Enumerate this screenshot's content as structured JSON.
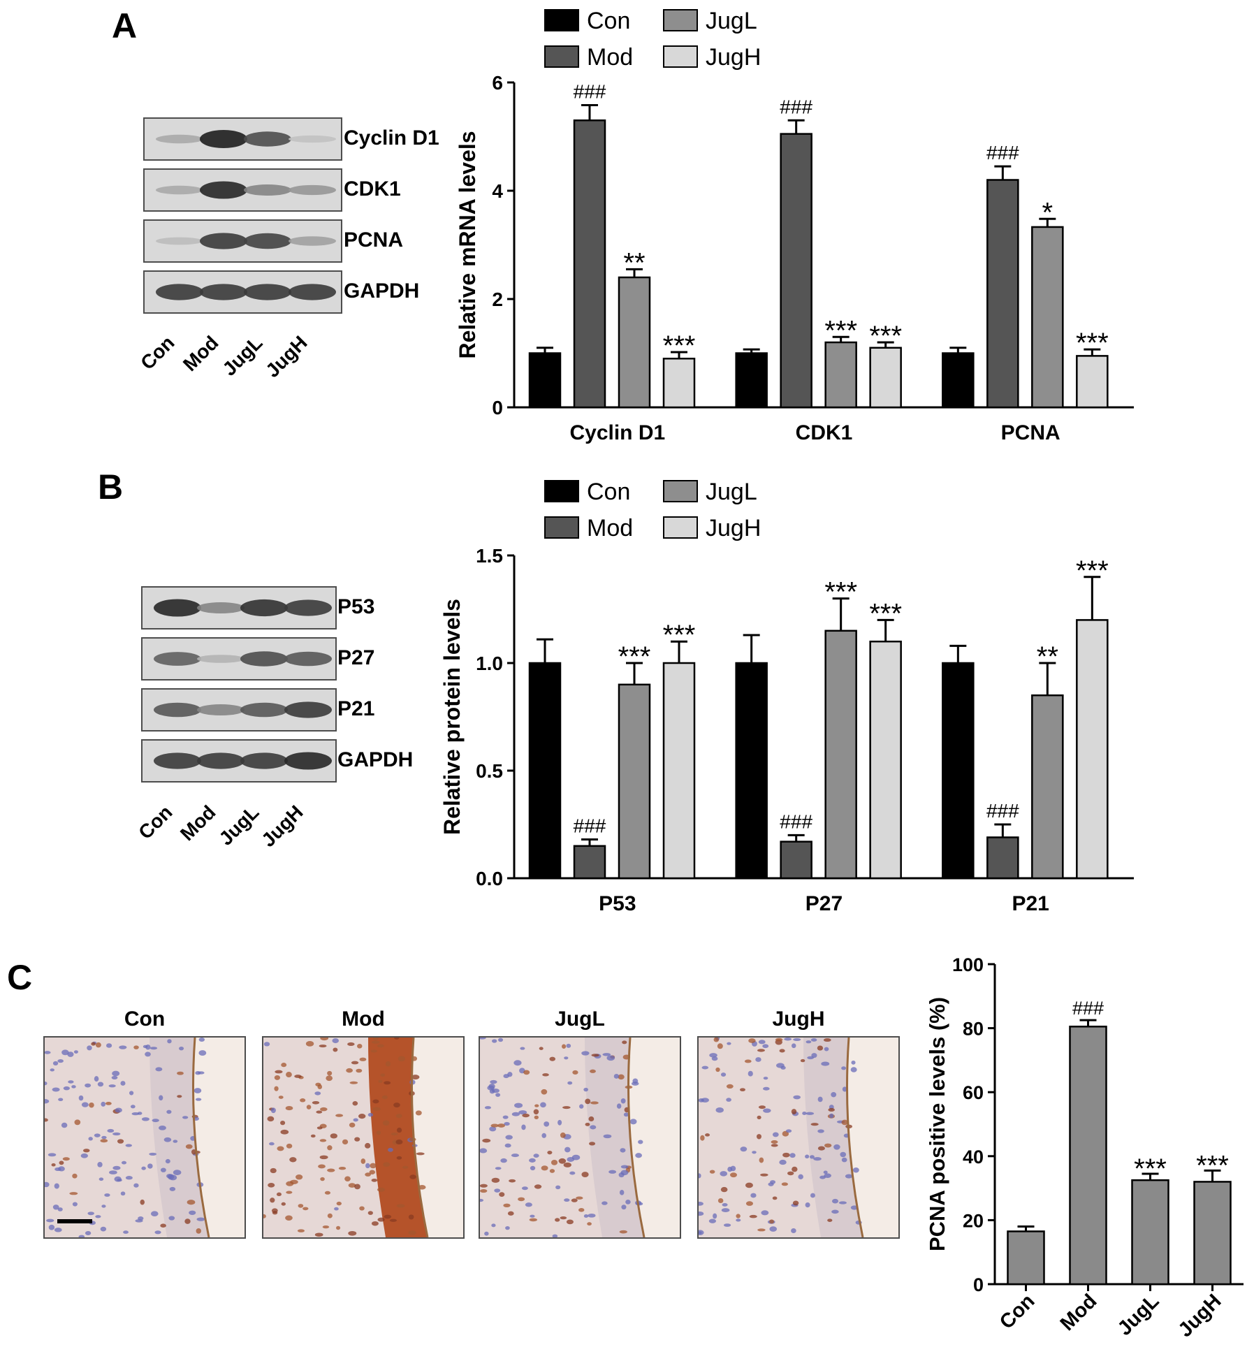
{
  "panels": {
    "A": "A",
    "B": "B",
    "C": "C"
  },
  "colors": {
    "Con": "#000000",
    "Mod": "#555555",
    "JugL": "#8e8e8e",
    "JugH": "#d8d8d8"
  },
  "blot_A": {
    "proteins": [
      "Cyclin D1",
      "CDK1",
      "PCNA",
      "GAPDH"
    ],
    "lanes": [
      "Con",
      "Mod",
      "JugL",
      "JugH"
    ],
    "intensity": [
      [
        0.25,
        1.0,
        0.75,
        0.12
      ],
      [
        0.25,
        0.95,
        0.45,
        0.35
      ],
      [
        0.15,
        0.85,
        0.8,
        0.3
      ],
      [
        0.85,
        0.85,
        0.85,
        0.85
      ]
    ]
  },
  "blot_B": {
    "proteins": [
      "P53",
      "P27",
      "P21",
      "GAPDH"
    ],
    "lanes": [
      "Con",
      "Mod",
      "JugL",
      "JugH"
    ],
    "intensity": [
      [
        0.95,
        0.45,
        0.9,
        0.85
      ],
      [
        0.65,
        0.2,
        0.75,
        0.7
      ],
      [
        0.7,
        0.45,
        0.7,
        0.85
      ],
      [
        0.85,
        0.85,
        0.85,
        0.95
      ]
    ]
  },
  "ihc": {
    "titles": [
      "Con",
      "Mod",
      "JugL",
      "JugH"
    ],
    "stain_level": [
      0.2,
      0.9,
      0.4,
      0.4
    ]
  },
  "chart_data": [
    {
      "type": "bar",
      "ylabel": "Relative mRNA levels",
      "categories": [
        "Cyclin D1",
        "CDK1",
        "PCNA"
      ],
      "ylim": [
        0,
        6
      ],
      "yticks": [
        "0",
        "2",
        "4",
        "6"
      ],
      "legend": [
        "Con",
        "JugL",
        "Mod",
        "JugH"
      ],
      "series": [
        {
          "name": "Con",
          "values": [
            1.0,
            1.0,
            1.0
          ],
          "errors": [
            0.1,
            0.07,
            0.1
          ],
          "annotations": [
            "",
            "",
            ""
          ]
        },
        {
          "name": "Mod",
          "values": [
            5.3,
            5.05,
            4.2
          ],
          "errors": [
            0.28,
            0.25,
            0.25
          ],
          "annotations": [
            "###",
            "###",
            "###"
          ]
        },
        {
          "name": "JugL",
          "values": [
            2.4,
            1.2,
            3.33
          ],
          "errors": [
            0.15,
            0.1,
            0.15
          ],
          "annotations": [
            "**",
            "***",
            "*"
          ]
        },
        {
          "name": "JugH",
          "values": [
            0.9,
            1.1,
            0.95
          ],
          "errors": [
            0.12,
            0.1,
            0.12
          ],
          "annotations": [
            "***",
            "***",
            "***"
          ]
        }
      ]
    },
    {
      "type": "bar",
      "ylabel": "Relative protein levels",
      "categories": [
        "P53",
        "P27",
        "P21"
      ],
      "ylim": [
        0,
        1.5
      ],
      "yticks": [
        "0.0",
        "0.5",
        "1.0",
        "1.5"
      ],
      "legend": [
        "Con",
        "JugL",
        "Mod",
        "JugH"
      ],
      "series": [
        {
          "name": "Con",
          "values": [
            1.0,
            1.0,
            1.0
          ],
          "errors": [
            0.11,
            0.13,
            0.08
          ],
          "annotations": [
            "",
            "",
            ""
          ]
        },
        {
          "name": "Mod",
          "values": [
            0.15,
            0.17,
            0.19
          ],
          "errors": [
            0.03,
            0.03,
            0.06
          ],
          "annotations": [
            "###",
            "###",
            "###"
          ]
        },
        {
          "name": "JugL",
          "values": [
            0.9,
            1.15,
            0.85
          ],
          "errors": [
            0.1,
            0.15,
            0.15
          ],
          "annotations": [
            "***",
            "***",
            "**"
          ]
        },
        {
          "name": "JugH",
          "values": [
            1.0,
            1.1,
            1.2
          ],
          "errors": [
            0.1,
            0.1,
            0.2
          ],
          "annotations": [
            "***",
            "***",
            "***"
          ]
        }
      ]
    },
    {
      "type": "bar",
      "ylabel": "PCNA positive levels (%)",
      "categories": [
        "Con",
        "Mod",
        "JugL",
        "JugH"
      ],
      "ylim": [
        0,
        100
      ],
      "yticks": [
        "0",
        "20",
        "40",
        "60",
        "80",
        "100"
      ],
      "color": "#8a8a8a",
      "values": [
        16.5,
        80.5,
        32.5,
        32
      ],
      "errors": [
        1.5,
        2.0,
        2.0,
        3.5
      ],
      "annotations": [
        "",
        "###",
        "***",
        "***"
      ]
    }
  ]
}
